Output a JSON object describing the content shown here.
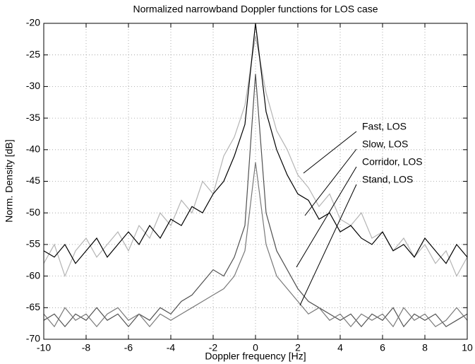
{
  "chart_data": {
    "type": "line",
    "title": "Normalized narrowband Doppler functions for LOS case",
    "xlabel": "Doppler frequency [Hz]",
    "ylabel": "Norm. Density [dB]",
    "x": [
      -10,
      -9.5,
      -9,
      -8.5,
      -8,
      -7.5,
      -7,
      -6.5,
      -6,
      -5.5,
      -5,
      -4.5,
      -4,
      -3.5,
      -3,
      -2.5,
      -2,
      -1.5,
      -1,
      -0.5,
      0,
      0.5,
      1,
      1.5,
      2,
      2.5,
      3,
      3.5,
      4,
      4.5,
      5,
      5.5,
      6,
      6.5,
      7,
      7.5,
      8,
      8.5,
      9,
      9.5,
      10
    ],
    "series": [
      {
        "name": "Fast, LOS",
        "color": "#b4b4b4",
        "values": [
          -58,
          -55,
          -60,
          -56,
          -54,
          -57,
          -55,
          -53,
          -56,
          -52,
          -54,
          -50,
          -52,
          -48,
          -50,
          -45,
          -47,
          -41,
          -38,
          -33,
          -22,
          -31,
          -37,
          -40,
          -44,
          -46,
          -49,
          -47,
          -51,
          -52,
          -50,
          -54,
          -53,
          -56,
          -54,
          -57,
          -55,
          -58,
          -56,
          -60,
          -57
        ]
      },
      {
        "name": "Slow, LOS",
        "color": "#000000",
        "values": [
          -56,
          -57,
          -55,
          -58,
          -56,
          -54,
          -57,
          -55,
          -53,
          -55,
          -52,
          -54,
          -51,
          -52,
          -49,
          -50,
          -47,
          -45,
          -41,
          -36,
          -20,
          -34,
          -40,
          -44,
          -47,
          -48,
          -51,
          -50,
          -53,
          -52,
          -54,
          -55,
          -53,
          -56,
          -55,
          -57,
          -54,
          -56,
          -58,
          -55,
          -57
        ]
      },
      {
        "name": "Corridor, LOS",
        "color": "#505050",
        "values": [
          -67,
          -66,
          -68,
          -66,
          -67,
          -65,
          -67,
          -66,
          -68,
          -66,
          -67,
          -65,
          -66,
          -64,
          -63,
          -61,
          -59,
          -60,
          -57,
          -52,
          -28,
          -50,
          -56,
          -59,
          -62,
          -64,
          -65,
          -66,
          -67,
          -66,
          -68,
          -66,
          -67,
          -65,
          -68,
          -66,
          -67,
          -66,
          -68,
          -67,
          -66
        ]
      },
      {
        "name": "Stand, LOS",
        "color": "#787878",
        "values": [
          -66,
          -68,
          -65,
          -67,
          -66,
          -68,
          -66,
          -65,
          -67,
          -66,
          -68,
          -66,
          -67,
          -66,
          -65,
          -64,
          -63,
          -62,
          -60,
          -56,
          -42,
          -55,
          -60,
          -62,
          -64,
          -66,
          -65,
          -67,
          -66,
          -68,
          -66,
          -67,
          -66,
          -68,
          -65,
          -67,
          -66,
          -68,
          -67,
          -65,
          -67
        ]
      }
    ],
    "xlim": [
      -10,
      10
    ],
    "ylim": [
      -70,
      -20
    ],
    "xticks": [
      -10,
      -8,
      -6,
      -4,
      -2,
      0,
      2,
      4,
      6,
      8,
      10
    ],
    "yticks": [
      -70,
      -65,
      -60,
      -55,
      -50,
      -45,
      -40,
      -35,
      -30,
      -25,
      -20
    ],
    "grid": true
  }
}
